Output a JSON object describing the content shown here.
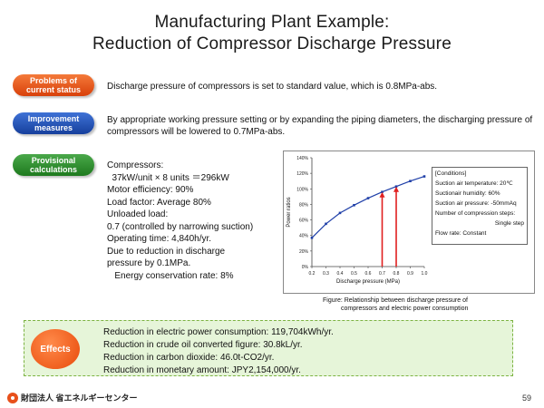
{
  "title": {
    "line1": "Manufacturing Plant Example:",
    "line2": "Reduction of Compressor Discharge Pressure"
  },
  "problems": {
    "label_line1": "Problems of",
    "label_line2": "current status",
    "text": "Discharge pressure of compressors is set to standard value, which is 0.8MPa-abs.",
    "color": "#e8501a"
  },
  "improvement": {
    "label_line1": "Improvement",
    "label_line2": "measures",
    "text": "By appropriate working pressure setting or by expanding the piping diameters, the discharging pressure of compressors will be lowered to 0.7MPa-abs.",
    "color": "#1e4fb0"
  },
  "provisional": {
    "label_line1": "Provisional",
    "label_line2": "calculations",
    "color": "#2e8b2e",
    "lines": [
      "Compressors:",
      "  37kW/unit × 8 units ＝296kW",
      "Motor efficiency: 90%",
      "Load factor: Average 80%",
      "Unloaded load:",
      "0.7 (controlled by narrowing suction)",
      "Operating time: 4,840h/yr.",
      "Due to reduction in discharge",
      "pressure by 0.1MPa.",
      "   Energy conservation rate: 8%"
    ]
  },
  "conditions": {
    "title": "[Conditions]",
    "lines": [
      "Suction air temperature: 20℃",
      "Suctionair humidity: 60%",
      "Suction air pressure: -50mmAq",
      "Number of compression steps:",
      "Single step",
      "Flow rate: Constant"
    ]
  },
  "caption": {
    "line1": "Figure:  Relationship between discharge pressure of",
    "line2": "compressors and electric power consumption"
  },
  "effects": {
    "label": "Effects",
    "lines": [
      "Reduction in electric power consumption: 119,704kWh/yr.",
      "Reduction in crude oil converted figure: 30.8kL/yr.",
      "Reduction in carbon dioxide: 46.0t-CO2/yr.",
      "Reduction in monetary amount: JPY2,154,000/yr."
    ]
  },
  "footer": {
    "org": "財団法人 省エネルギーセンター",
    "page": "59"
  },
  "chart_data": {
    "type": "line",
    "xlabel": "Discharge pressure (MPa)",
    "ylabel": "Power ratios",
    "xlim": [
      0.2,
      1.0
    ],
    "ylim": [
      0,
      140
    ],
    "x_ticks": [
      "0.2",
      "0.3",
      "0.4",
      "0.5",
      "0.6",
      "0.7",
      "0.8",
      "0.9",
      "1.0"
    ],
    "y_ticks": [
      "0%",
      "20%",
      "40%",
      "60%",
      "80%",
      "100%",
      "120%",
      "140%"
    ],
    "y_tick_values": [
      0,
      20,
      40,
      60,
      80,
      100,
      120,
      140
    ],
    "x_tick_values": [
      0.2,
      0.3,
      0.4,
      0.5,
      0.6,
      0.7,
      0.8,
      0.9,
      1.0
    ],
    "grid": false,
    "series": [
      {
        "color": "#1f3fa8",
        "x": [
          0.2,
          0.3,
          0.4,
          0.5,
          0.6,
          0.7,
          0.8,
          0.9,
          1.0
        ],
        "y": [
          37,
          55,
          69,
          79,
          88,
          96,
          103,
          110,
          116
        ]
      }
    ],
    "markers": [
      {
        "x": 0.7,
        "y": 96,
        "color": "#e02020"
      },
      {
        "x": 0.8,
        "y": 103,
        "color": "#e02020"
      }
    ]
  }
}
